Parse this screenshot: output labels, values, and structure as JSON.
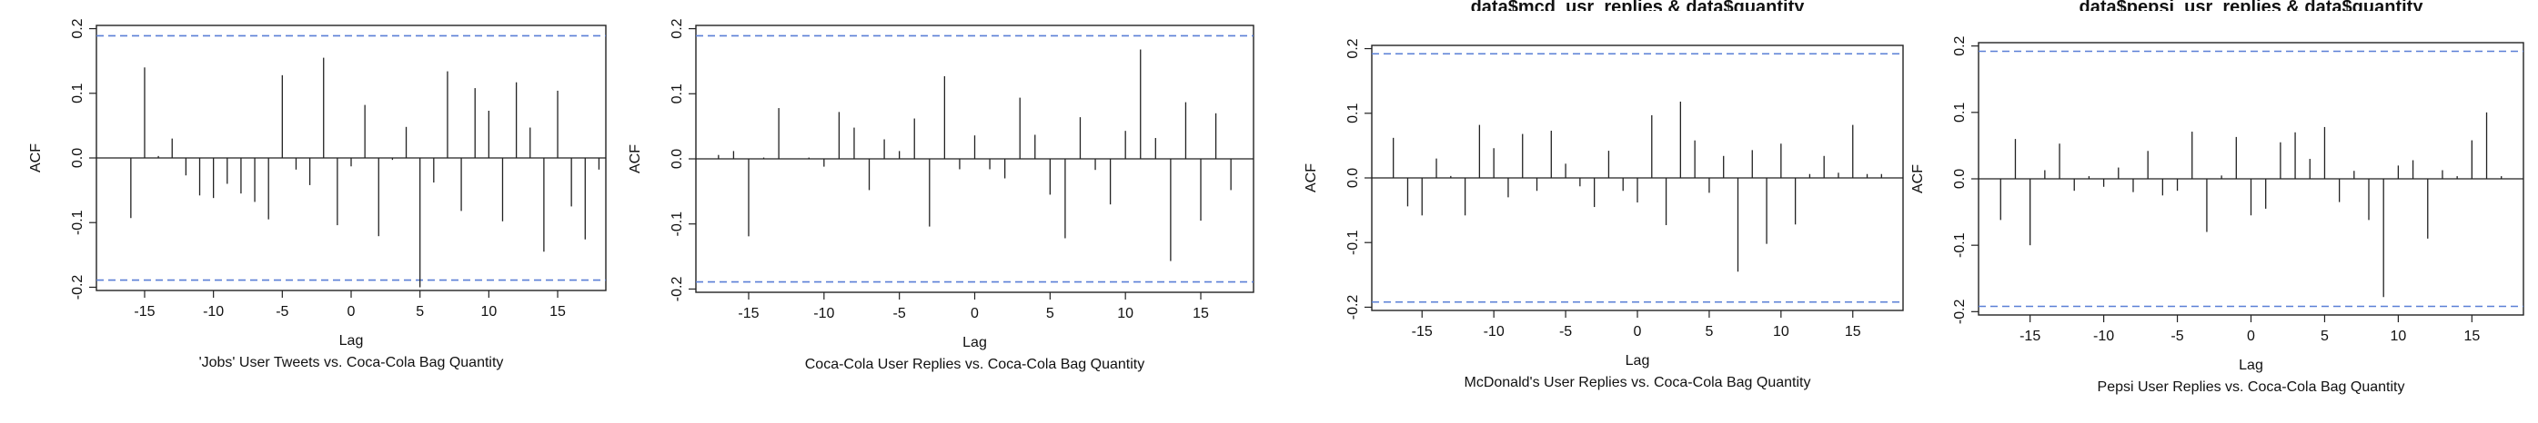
{
  "chart_data": [
    {
      "type": "bar",
      "subtitle": "'Jobs' User Tweets vs. Coca-Cola Bag Quantity",
      "title_fragment": "",
      "xlabel": "Lag",
      "ylabel": "ACF",
      "xlim": [
        -18.5,
        18.5
      ],
      "ylim": [
        -0.205,
        0.205
      ],
      "x_ticks": [
        -15,
        -10,
        -5,
        0,
        5,
        10,
        15
      ],
      "y_ticks": [
        -0.2,
        -0.1,
        0.0,
        0.1,
        0.2
      ],
      "y_tick_labels": [
        "-0.2",
        "-0.1",
        "0.0",
        "0.1",
        "0.2"
      ],
      "confidence_bound": 0.189,
      "lags": [
        -18,
        -17,
        -16,
        -15,
        -14,
        -13,
        -12,
        -11,
        -10,
        -9,
        -8,
        -7,
        -6,
        -5,
        -4,
        -3,
        -2,
        -1,
        0,
        1,
        2,
        3,
        4,
        5,
        6,
        7,
        8,
        9,
        10,
        11,
        12,
        13,
        14,
        15,
        16,
        17,
        18
      ],
      "acf": [
        0.0,
        0.0,
        -0.093,
        0.14,
        0.003,
        0.03,
        -0.027,
        -0.058,
        -0.062,
        -0.04,
        -0.055,
        -0.068,
        -0.095,
        0.128,
        -0.018,
        -0.042,
        0.155,
        -0.104,
        -0.013,
        0.082,
        -0.121,
        -0.003,
        0.048,
        -0.2,
        -0.038,
        0.134,
        -0.082,
        0.108,
        0.073,
        -0.098,
        0.117,
        0.047,
        -0.145,
        0.104,
        -0.075,
        -0.126,
        -0.018
      ]
    },
    {
      "type": "bar",
      "subtitle": "Coca-Cola User Replies vs. Coca-Cola Bag Quantity",
      "title_fragment": "",
      "xlabel": "Lag",
      "ylabel": "ACF",
      "xlim": [
        -18.5,
        18.5
      ],
      "ylim": [
        -0.205,
        0.205
      ],
      "x_ticks": [
        -15,
        -10,
        -5,
        0,
        5,
        10,
        15
      ],
      "y_ticks": [
        -0.2,
        -0.1,
        0.0,
        0.1,
        0.2
      ],
      "y_tick_labels": [
        "-0.2",
        "-0.1",
        "0.0",
        "0.1",
        "0.2"
      ],
      "confidence_bound": 0.189,
      "lags": [
        -18,
        -17,
        -16,
        -15,
        -14,
        -13,
        -12,
        -11,
        -10,
        -9,
        -8,
        -7,
        -6,
        -5,
        -4,
        -3,
        -2,
        -1,
        0,
        1,
        2,
        3,
        4,
        5,
        6,
        7,
        8,
        9,
        10,
        11,
        12,
        13,
        14,
        15,
        16,
        17,
        18
      ],
      "acf": [
        0.0,
        0.006,
        0.012,
        -0.119,
        0.002,
        0.078,
        0.0,
        0.002,
        -0.012,
        0.072,
        0.048,
        -0.048,
        0.03,
        0.012,
        0.062,
        -0.104,
        0.127,
        -0.016,
        0.036,
        -0.016,
        -0.03,
        0.094,
        0.037,
        -0.055,
        -0.122,
        0.064,
        -0.017,
        -0.07,
        0.043,
        0.168,
        0.032,
        -0.157,
        0.087,
        -0.095,
        0.07,
        -0.048,
        0.0
      ]
    },
    {
      "type": "bar",
      "subtitle": "McDonald's User Replies vs. Coca-Cola Bag Quantity",
      "title_fragment": "data$mcd_usr_replies & data$quantity",
      "xlabel": "Lag",
      "ylabel": "ACF",
      "xlim": [
        -18.5,
        18.5
      ],
      "ylim": [
        -0.205,
        0.205
      ],
      "x_ticks": [
        -15,
        -10,
        -5,
        0,
        5,
        10,
        15
      ],
      "y_ticks": [
        -0.2,
        -0.1,
        0.0,
        0.1,
        0.2
      ],
      "y_tick_labels": [
        "-0.2",
        "-0.1",
        "0.0",
        "0.1",
        "0.2"
      ],
      "confidence_bound": 0.192,
      "lags": [
        -18,
        -17,
        -16,
        -15,
        -14,
        -13,
        -12,
        -11,
        -10,
        -9,
        -8,
        -7,
        -6,
        -5,
        -4,
        -3,
        -2,
        -1,
        0,
        1,
        2,
        3,
        4,
        5,
        6,
        7,
        8,
        9,
        10,
        11,
        12,
        13,
        14,
        15,
        16,
        17,
        18
      ],
      "acf": [
        0.0,
        0.062,
        -0.044,
        -0.058,
        0.03,
        0.003,
        -0.058,
        0.082,
        0.046,
        -0.03,
        0.068,
        -0.02,
        0.073,
        0.022,
        -0.013,
        -0.045,
        0.042,
        -0.02,
        -0.038,
        0.097,
        -0.073,
        0.118,
        0.058,
        -0.023,
        0.034,
        -0.145,
        0.043,
        -0.102,
        0.053,
        -0.072,
        0.006,
        0.034,
        0.008,
        0.082,
        0.006,
        0.006,
        0.0
      ]
    },
    {
      "type": "bar",
      "subtitle": "Pepsi User Replies vs. Coca-Cola Bag Quantity",
      "title_fragment": "data$pepsi_usr_replies & data$quantity",
      "xlabel": "Lag",
      "ylabel": "ACF",
      "xlim": [
        -18.5,
        18.5
      ],
      "ylim": [
        -0.205,
        0.205
      ],
      "x_ticks": [
        -15,
        -10,
        -5,
        0,
        5,
        10,
        15
      ],
      "y_ticks": [
        -0.2,
        -0.1,
        0.0,
        0.1,
        0.2
      ],
      "y_tick_labels": [
        "-0.2",
        "-0.1",
        "0.0",
        "0.1",
        "0.2"
      ],
      "confidence_bound": 0.192,
      "lags": [
        -18,
        -17,
        -16,
        -15,
        -14,
        -13,
        -12,
        -11,
        -10,
        -9,
        -8,
        -7,
        -6,
        -5,
        -4,
        -3,
        -2,
        -1,
        0,
        1,
        2,
        3,
        4,
        5,
        6,
        7,
        8,
        9,
        10,
        11,
        12,
        13,
        14,
        15,
        16,
        17,
        18
      ],
      "acf": [
        0.0,
        -0.062,
        0.06,
        -0.1,
        0.013,
        0.053,
        -0.018,
        0.004,
        -0.012,
        0.017,
        -0.02,
        0.042,
        -0.025,
        -0.018,
        0.071,
        -0.08,
        0.005,
        0.063,
        -0.055,
        -0.045,
        0.055,
        0.07,
        0.03,
        0.078,
        -0.035,
        0.012,
        -0.062,
        -0.178,
        0.02,
        0.028,
        -0.09,
        0.013,
        0.004,
        0.058,
        0.1,
        0.004,
        0.0
      ]
    }
  ],
  "colors": {
    "bound_line": "#5a7fd6",
    "bars": "#222222",
    "frame": "#222222"
  }
}
